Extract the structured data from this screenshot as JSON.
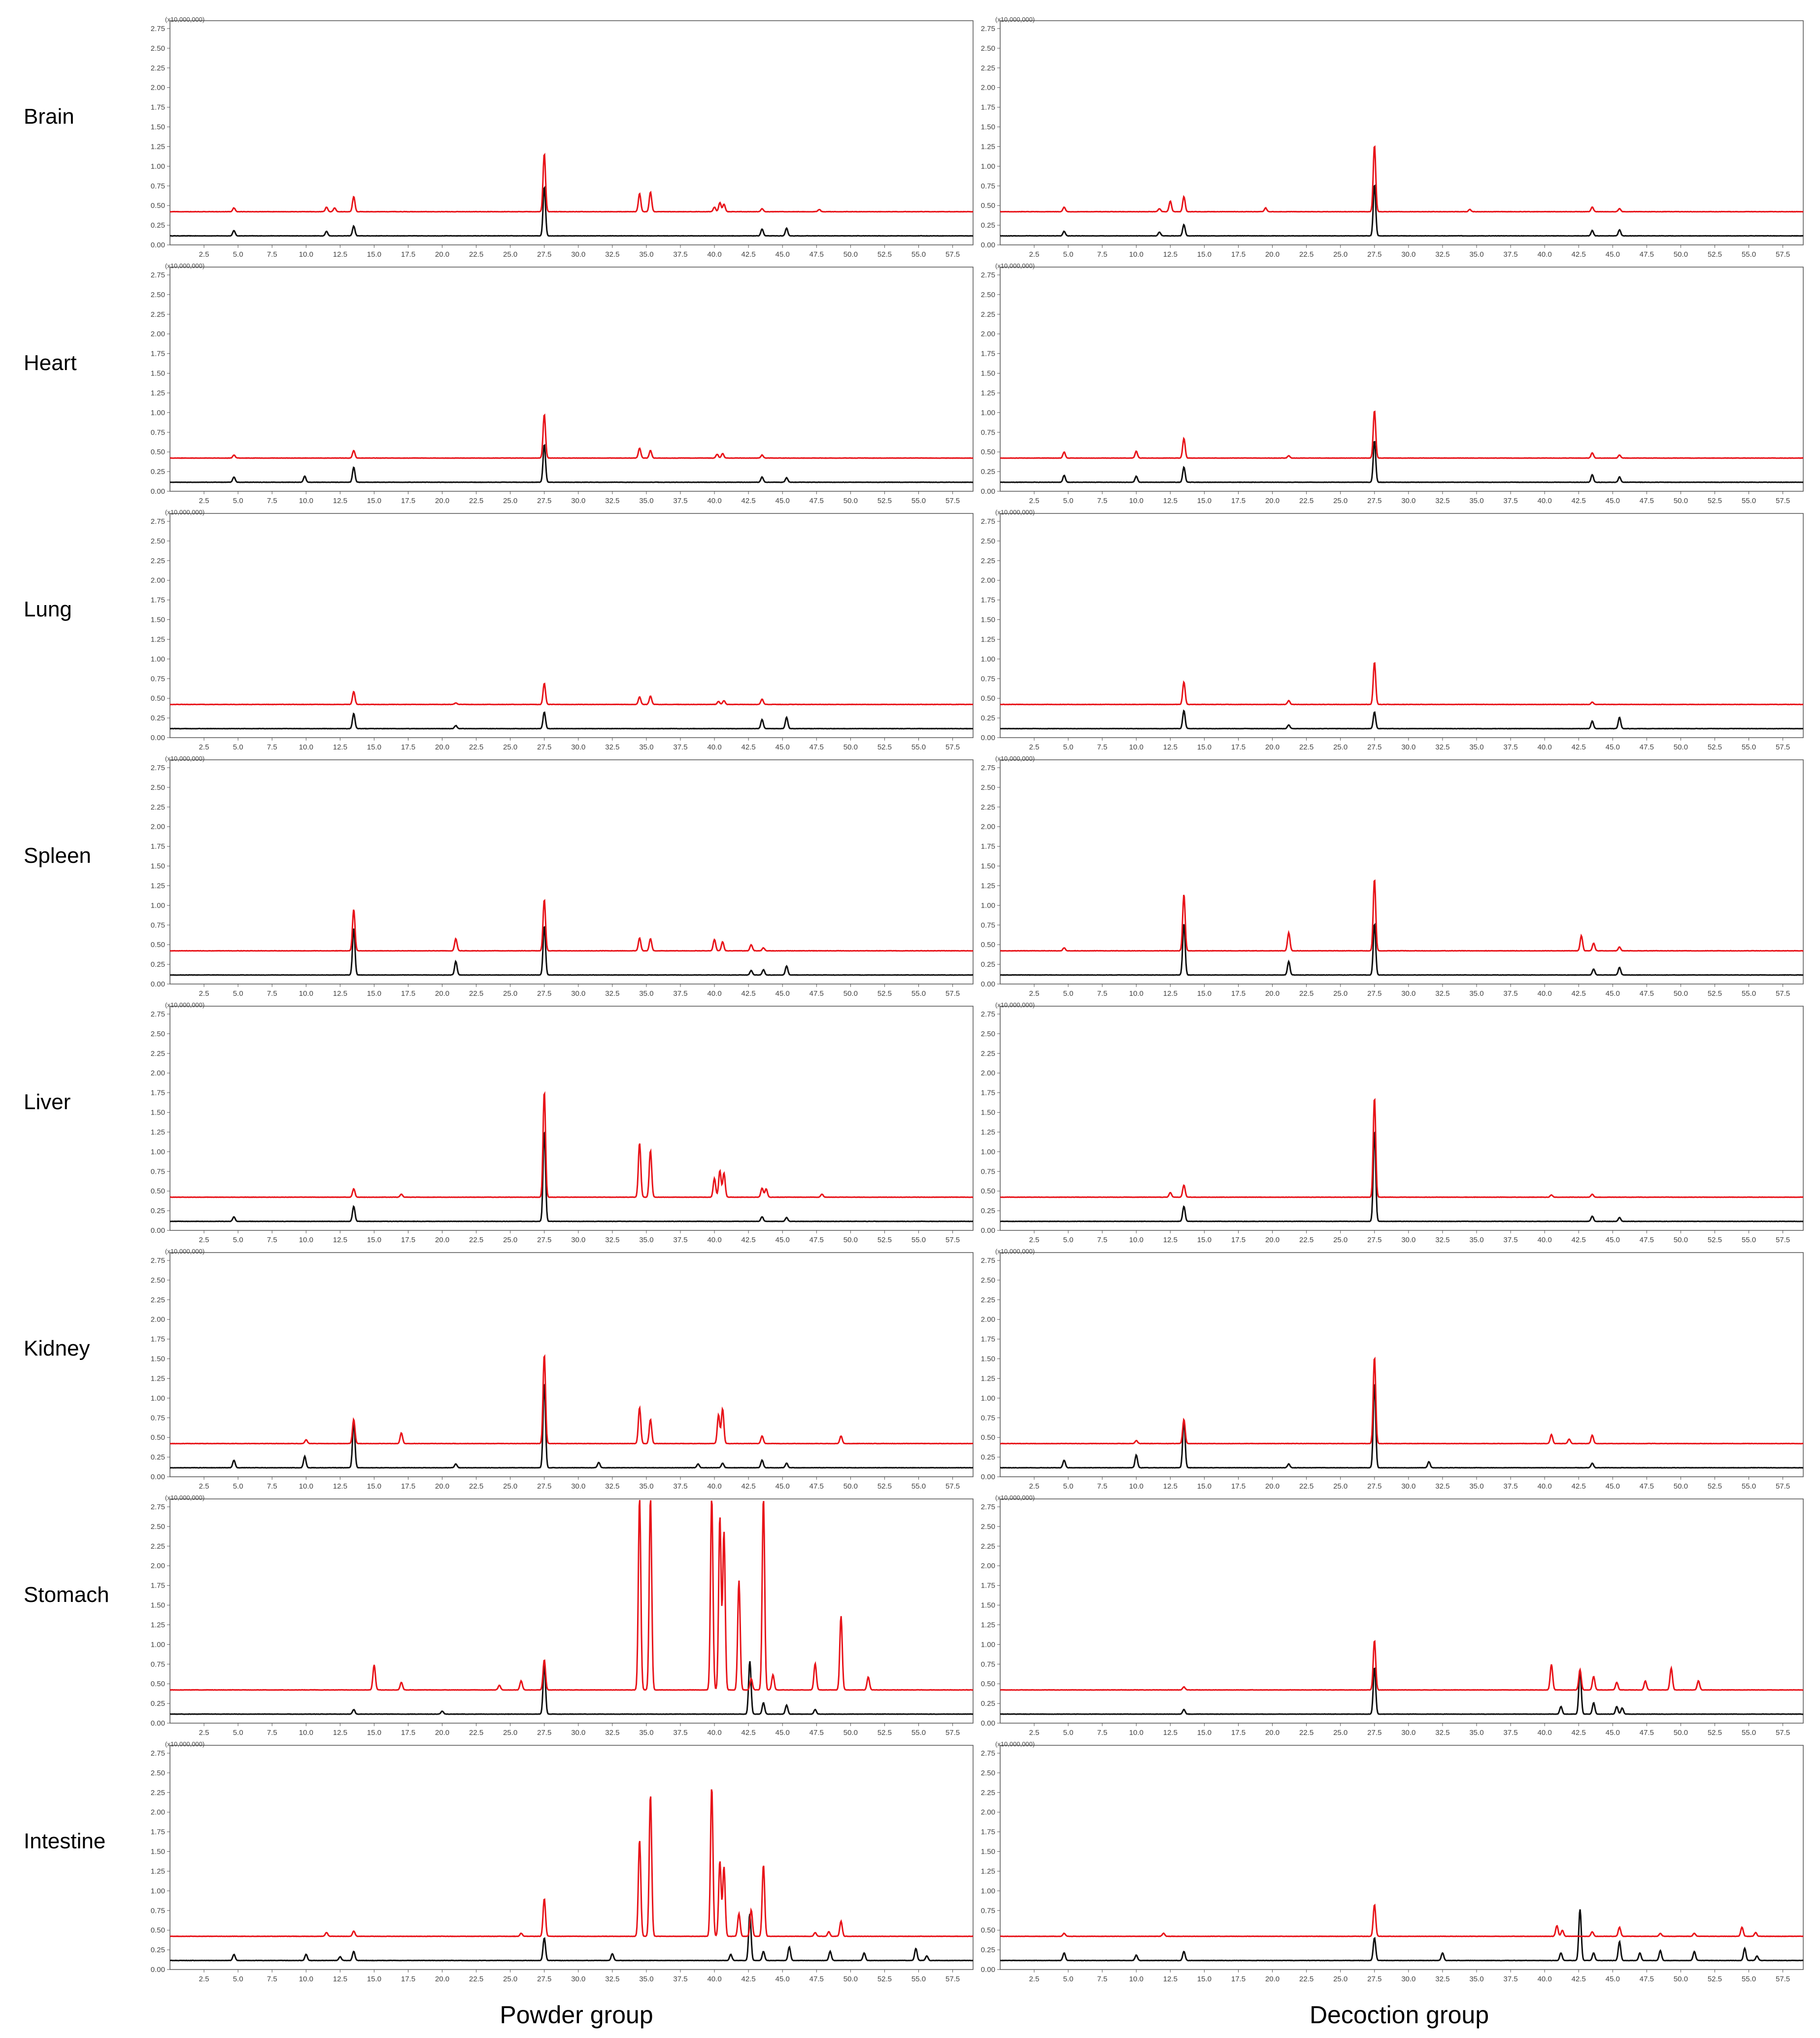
{
  "rows": [
    "Brain",
    "Heart",
    "Lung",
    "Spleen",
    "Liver",
    "Kidney",
    "Stomach",
    "Intestine"
  ],
  "columns": [
    "Powder group",
    "Decoction group"
  ],
  "colors": {
    "red": "#e8141a",
    "black": "#111111",
    "axis": "#555555"
  },
  "chart_data": {
    "type": "line",
    "subtype": "chromatogram-grid",
    "x_range": [
      0,
      59
    ],
    "y_range": [
      0,
      2.85
    ],
    "x_ticks": [
      "2.5",
      "5.0",
      "7.5",
      "10.0",
      "12.5",
      "15.0",
      "17.5",
      "20.0",
      "22.5",
      "25.0",
      "27.5",
      "30.0",
      "32.5",
      "35.0",
      "37.5",
      "40.0",
      "42.5",
      "45.0",
      "47.5",
      "50.0",
      "52.5",
      "55.0",
      "57.5"
    ],
    "y_ticks": [
      "0.00",
      "0.25",
      "0.50",
      "0.75",
      "1.00",
      "1.25",
      "1.50",
      "1.75",
      "2.00",
      "2.25",
      "2.50",
      "2.75"
    ],
    "scale_label": {
      "powder": "(x10,000,000)",
      "decoction": "(x10,000,000)"
    },
    "series_offset": {
      "red": 0.32,
      "black": 0.0
    },
    "panels": [
      {
        "row": "Brain",
        "column": "Powder group",
        "red": [
          [
            4.7,
            0.05
          ],
          [
            11.5,
            0.06
          ],
          [
            12.1,
            0.05
          ],
          [
            13.5,
            0.2
          ],
          [
            27.5,
            0.77
          ],
          [
            34.5,
            0.24
          ],
          [
            35.3,
            0.26
          ],
          [
            40.0,
            0.06
          ],
          [
            40.4,
            0.12
          ],
          [
            40.7,
            0.1
          ],
          [
            43.5,
            0.04
          ],
          [
            47.7,
            0.03
          ]
        ],
        "black": [
          [
            4.7,
            0.07
          ],
          [
            11.5,
            0.06
          ],
          [
            13.5,
            0.13
          ],
          [
            27.5,
            0.65
          ],
          [
            43.5,
            0.09
          ],
          [
            45.3,
            0.1
          ]
        ]
      },
      {
        "row": "Brain",
        "column": "Decoction group",
        "red": [
          [
            4.7,
            0.06
          ],
          [
            11.7,
            0.04
          ],
          [
            12.5,
            0.14
          ],
          [
            13.5,
            0.2
          ],
          [
            19.5,
            0.05
          ],
          [
            27.5,
            0.88
          ],
          [
            34.5,
            0.03
          ],
          [
            43.5,
            0.06
          ],
          [
            45.5,
            0.04
          ]
        ],
        "black": [
          [
            4.7,
            0.06
          ],
          [
            11.7,
            0.05
          ],
          [
            13.5,
            0.15
          ],
          [
            27.5,
            0.68
          ],
          [
            43.5,
            0.07
          ],
          [
            45.5,
            0.08
          ]
        ]
      },
      {
        "row": "Heart",
        "column": "Powder group",
        "red": [
          [
            4.7,
            0.04
          ],
          [
            13.5,
            0.1
          ],
          [
            27.5,
            0.58
          ],
          [
            34.5,
            0.13
          ],
          [
            35.3,
            0.1
          ],
          [
            40.2,
            0.05
          ],
          [
            40.6,
            0.06
          ],
          [
            43.5,
            0.04
          ]
        ],
        "black": [
          [
            4.7,
            0.07
          ],
          [
            9.9,
            0.08
          ],
          [
            13.5,
            0.2
          ],
          [
            27.5,
            0.5
          ],
          [
            43.5,
            0.07
          ],
          [
            45.3,
            0.06
          ]
        ]
      },
      {
        "row": "Heart",
        "column": "Decoction group",
        "red": [
          [
            4.7,
            0.08
          ],
          [
            10.0,
            0.09
          ],
          [
            13.5,
            0.26
          ],
          [
            21.2,
            0.03
          ],
          [
            27.5,
            0.63
          ],
          [
            43.5,
            0.07
          ],
          [
            45.5,
            0.04
          ]
        ],
        "black": [
          [
            4.7,
            0.09
          ],
          [
            10.0,
            0.08
          ],
          [
            13.5,
            0.2
          ],
          [
            27.5,
            0.55
          ],
          [
            43.5,
            0.1
          ],
          [
            45.5,
            0.07
          ]
        ]
      },
      {
        "row": "Lung",
        "column": "Powder group",
        "red": [
          [
            13.5,
            0.17
          ],
          [
            21.0,
            0.02
          ],
          [
            27.5,
            0.28
          ],
          [
            34.5,
            0.1
          ],
          [
            35.3,
            0.11
          ],
          [
            40.3,
            0.04
          ],
          [
            40.7,
            0.05
          ],
          [
            43.5,
            0.07
          ]
        ],
        "black": [
          [
            13.5,
            0.2
          ],
          [
            21.0,
            0.04
          ],
          [
            27.5,
            0.22
          ],
          [
            43.5,
            0.12
          ],
          [
            45.3,
            0.15
          ]
        ]
      },
      {
        "row": "Lung",
        "column": "Decoction group",
        "red": [
          [
            13.5,
            0.3
          ],
          [
            21.2,
            0.05
          ],
          [
            27.5,
            0.56
          ],
          [
            43.5,
            0.03
          ]
        ],
        "black": [
          [
            13.5,
            0.24
          ],
          [
            21.2,
            0.05
          ],
          [
            27.5,
            0.22
          ],
          [
            43.5,
            0.1
          ],
          [
            45.5,
            0.15
          ]
        ]
      },
      {
        "row": "Spleen",
        "column": "Powder group",
        "red": [
          [
            13.5,
            0.55
          ],
          [
            21.0,
            0.16
          ],
          [
            27.5,
            0.68
          ],
          [
            34.5,
            0.17
          ],
          [
            35.3,
            0.16
          ],
          [
            40.0,
            0.15
          ],
          [
            40.6,
            0.12
          ],
          [
            42.7,
            0.08
          ],
          [
            43.6,
            0.04
          ]
        ],
        "black": [
          [
            13.5,
            0.62
          ],
          [
            21.0,
            0.18
          ],
          [
            27.5,
            0.65
          ],
          [
            42.7,
            0.06
          ],
          [
            43.6,
            0.07
          ],
          [
            45.3,
            0.12
          ]
        ]
      },
      {
        "row": "Spleen",
        "column": "Decoction group",
        "red": [
          [
            4.7,
            0.04
          ],
          [
            13.5,
            0.75
          ],
          [
            21.2,
            0.24
          ],
          [
            27.5,
            0.95
          ],
          [
            42.7,
            0.2
          ],
          [
            43.6,
            0.1
          ],
          [
            45.5,
            0.05
          ]
        ],
        "black": [
          [
            13.5,
            0.68
          ],
          [
            21.2,
            0.18
          ],
          [
            27.5,
            0.68
          ],
          [
            43.6,
            0.08
          ],
          [
            45.5,
            0.1
          ]
        ]
      },
      {
        "row": "Liver",
        "column": "Powder group",
        "red": [
          [
            13.5,
            0.11
          ],
          [
            17.0,
            0.04
          ],
          [
            27.5,
            1.4
          ],
          [
            34.5,
            0.72
          ],
          [
            35.3,
            0.62
          ],
          [
            40.0,
            0.25
          ],
          [
            40.4,
            0.35
          ],
          [
            40.7,
            0.32
          ],
          [
            43.5,
            0.12
          ],
          [
            43.8,
            0.11
          ],
          [
            47.9,
            0.04
          ]
        ],
        "black": [
          [
            4.7,
            0.06
          ],
          [
            13.5,
            0.2
          ],
          [
            27.5,
            1.2
          ],
          [
            43.5,
            0.06
          ],
          [
            45.3,
            0.05
          ]
        ]
      },
      {
        "row": "Liver",
        "column": "Decoction group",
        "red": [
          [
            12.5,
            0.06
          ],
          [
            13.5,
            0.16
          ],
          [
            27.5,
            1.32
          ],
          [
            40.5,
            0.03
          ],
          [
            43.5,
            0.04
          ]
        ],
        "black": [
          [
            13.5,
            0.2
          ],
          [
            27.5,
            1.2
          ],
          [
            43.5,
            0.07
          ],
          [
            45.5,
            0.05
          ]
        ]
      },
      {
        "row": "Kidney",
        "column": "Powder group",
        "red": [
          [
            10.0,
            0.05
          ],
          [
            13.5,
            0.32
          ],
          [
            17.0,
            0.14
          ],
          [
            27.5,
            1.18
          ],
          [
            34.5,
            0.48
          ],
          [
            35.3,
            0.32
          ],
          [
            40.3,
            0.38
          ],
          [
            40.6,
            0.46
          ],
          [
            43.5,
            0.1
          ],
          [
            49.3,
            0.1
          ]
        ],
        "black": [
          [
            4.7,
            0.1
          ],
          [
            9.9,
            0.15
          ],
          [
            13.5,
            0.6
          ],
          [
            21.0,
            0.05
          ],
          [
            27.5,
            1.12
          ],
          [
            31.5,
            0.07
          ],
          [
            38.8,
            0.05
          ],
          [
            40.6,
            0.06
          ],
          [
            43.5,
            0.1
          ],
          [
            45.3,
            0.06
          ]
        ]
      },
      {
        "row": "Kidney",
        "column": "Decoction group",
        "red": [
          [
            10.0,
            0.04
          ],
          [
            13.5,
            0.32
          ],
          [
            27.5,
            1.15
          ],
          [
            40.5,
            0.12
          ],
          [
            43.5,
            0.11
          ],
          [
            41.8,
            0.06
          ]
        ],
        "black": [
          [
            4.7,
            0.1
          ],
          [
            10.0,
            0.17
          ],
          [
            13.5,
            0.62
          ],
          [
            21.2,
            0.05
          ],
          [
            27.5,
            1.12
          ],
          [
            31.5,
            0.08
          ],
          [
            43.5,
            0.06
          ]
        ]
      },
      {
        "row": "Stomach",
        "column": "Powder group",
        "red": [
          [
            15.0,
            0.33
          ],
          [
            17.0,
            0.1
          ],
          [
            24.2,
            0.06
          ],
          [
            25.8,
            0.12
          ],
          [
            27.5,
            0.4
          ],
          [
            34.5,
            2.55
          ],
          [
            35.3,
            2.55
          ],
          [
            39.8,
            2.55
          ],
          [
            40.4,
            2.3
          ],
          [
            40.7,
            2.1
          ],
          [
            41.8,
            1.45
          ],
          [
            42.7,
            0.15
          ],
          [
            43.6,
            2.55
          ],
          [
            44.3,
            0.2
          ],
          [
            47.4,
            0.35
          ],
          [
            49.3,
            0.98
          ],
          [
            51.3,
            0.17
          ]
        ],
        "black": [
          [
            13.5,
            0.06
          ],
          [
            20.0,
            0.04
          ],
          [
            27.5,
            0.65
          ],
          [
            42.6,
            0.7
          ],
          [
            43.6,
            0.15
          ],
          [
            45.3,
            0.12
          ],
          [
            47.4,
            0.06
          ]
        ]
      },
      {
        "row": "Stomach",
        "column": "Decoction group",
        "red": [
          [
            13.5,
            0.04
          ],
          [
            27.5,
            0.66
          ],
          [
            40.5,
            0.34
          ],
          [
            42.6,
            0.27
          ],
          [
            43.6,
            0.18
          ],
          [
            45.3,
            0.1
          ],
          [
            47.4,
            0.12
          ],
          [
            49.3,
            0.29
          ],
          [
            51.3,
            0.12
          ]
        ],
        "black": [
          [
            13.5,
            0.06
          ],
          [
            27.5,
            0.62
          ],
          [
            41.2,
            0.1
          ],
          [
            42.6,
            0.58
          ],
          [
            43.6,
            0.15
          ],
          [
            45.3,
            0.1
          ],
          [
            45.7,
            0.08
          ]
        ]
      },
      {
        "row": "Intestine",
        "column": "Powder group",
        "red": [
          [
            11.5,
            0.05
          ],
          [
            13.5,
            0.07
          ],
          [
            25.8,
            0.04
          ],
          [
            27.5,
            0.5
          ],
          [
            34.5,
            1.28
          ],
          [
            35.3,
            1.88
          ],
          [
            39.8,
            1.98
          ],
          [
            40.4,
            1.0
          ],
          [
            40.7,
            0.92
          ],
          [
            41.8,
            0.3
          ],
          [
            42.7,
            0.35
          ],
          [
            43.6,
            0.95
          ],
          [
            47.4,
            0.05
          ],
          [
            48.4,
            0.06
          ],
          [
            49.3,
            0.2
          ]
        ],
        "black": [
          [
            4.7,
            0.08
          ],
          [
            10.0,
            0.08
          ],
          [
            12.5,
            0.05
          ],
          [
            13.5,
            0.12
          ],
          [
            27.5,
            0.3
          ],
          [
            32.5,
            0.09
          ],
          [
            41.2,
            0.08
          ],
          [
            42.6,
            0.62
          ],
          [
            43.6,
            0.12
          ],
          [
            45.5,
            0.18
          ],
          [
            48.5,
            0.12
          ],
          [
            51.0,
            0.1
          ],
          [
            54.8,
            0.16
          ],
          [
            55.6,
            0.06
          ]
        ]
      },
      {
        "row": "Intestine",
        "column": "Decoction group",
        "red": [
          [
            4.7,
            0.04
          ],
          [
            12.0,
            0.04
          ],
          [
            27.5,
            0.42
          ],
          [
            40.9,
            0.14
          ],
          [
            41.3,
            0.08
          ],
          [
            43.5,
            0.06
          ],
          [
            45.5,
            0.12
          ],
          [
            48.5,
            0.04
          ],
          [
            51.0,
            0.04
          ],
          [
            54.5,
            0.12
          ],
          [
            55.5,
            0.05
          ]
        ],
        "black": [
          [
            4.7,
            0.1
          ],
          [
            10.0,
            0.07
          ],
          [
            13.5,
            0.12
          ],
          [
            27.5,
            0.3
          ],
          [
            32.5,
            0.1
          ],
          [
            41.2,
            0.1
          ],
          [
            42.6,
            0.68
          ],
          [
            43.6,
            0.1
          ],
          [
            45.5,
            0.25
          ],
          [
            47.0,
            0.1
          ],
          [
            48.5,
            0.13
          ],
          [
            51.0,
            0.12
          ],
          [
            54.7,
            0.16
          ],
          [
            55.6,
            0.06
          ]
        ]
      }
    ]
  }
}
